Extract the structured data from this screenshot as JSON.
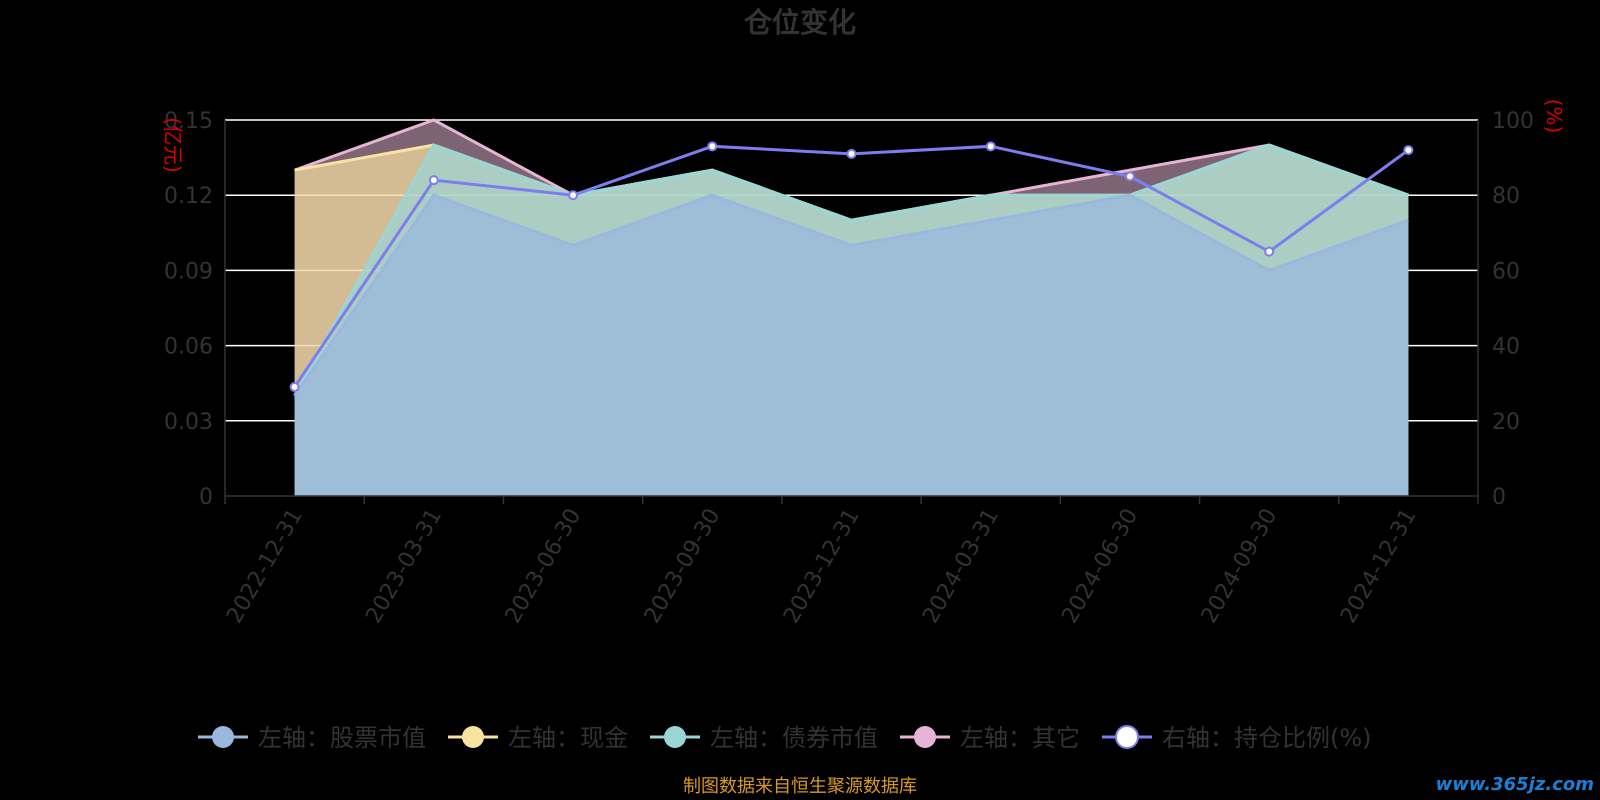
{
  "chart_data": {
    "type": "area",
    "title": "仓位变化",
    "categories": [
      "2022-12-31",
      "2023-03-31",
      "2023-06-30",
      "2023-09-30",
      "2023-12-31",
      "2024-03-31",
      "2024-06-30",
      "2024-09-30",
      "2024-12-31"
    ],
    "left_axis": {
      "unit_label": "(亿元)",
      "ylim": [
        0,
        0.15
      ],
      "ticks": [
        "0",
        "0.03",
        "0.06",
        "0.09",
        "0.12",
        "0.15"
      ]
    },
    "right_axis": {
      "unit_label": "(%)",
      "ylim": [
        0,
        100
      ],
      "ticks": [
        "0",
        "20",
        "40",
        "60",
        "80",
        "100"
      ]
    },
    "series": [
      {
        "name": "左轴：股票市值",
        "axis": "left",
        "color": "#9ab8de",
        "values": [
          0.04,
          0.12,
          0.1,
          0.12,
          0.1,
          0.11,
          0.12,
          0.09,
          0.11
        ]
      },
      {
        "name": "左轴：现金",
        "axis": "left",
        "color": "#f8e3a1",
        "values": [
          0.13,
          0.14,
          0.12,
          0.13,
          0.11,
          0.12,
          0.12,
          0.14,
          0.12
        ]
      },
      {
        "name": "左轴：债券市值",
        "axis": "left",
        "color": "#9bd6d6",
        "values": [
          0.04,
          0.14,
          0.12,
          0.13,
          0.11,
          0.12,
          0.12,
          0.14,
          0.12
        ]
      },
      {
        "name": "左轴：其它",
        "axis": "left",
        "color": "#e6b5d6",
        "values": [
          0.13,
          0.15,
          0.12,
          0.13,
          0.11,
          0.12,
          0.13,
          0.14,
          0.12
        ]
      },
      {
        "name": "右轴：持仓比例(%)",
        "axis": "right",
        "color": "#7c7ef0",
        "values": [
          29,
          84,
          80,
          93,
          91,
          93,
          85,
          65,
          92
        ]
      }
    ],
    "grid": true,
    "legend_position": "bottom"
  },
  "source_text": "制图数据来自恒生聚源数据库",
  "watermark": "www.365jz.com"
}
